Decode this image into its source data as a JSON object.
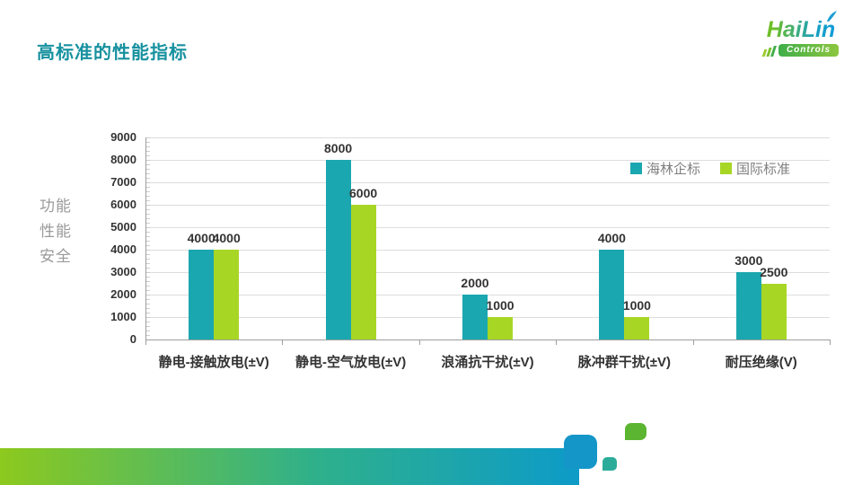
{
  "header": {
    "title": "高标准的性能指标",
    "logo": {
      "name": "HaiLin",
      "tagline": "Controls"
    }
  },
  "chart_data": {
    "type": "bar",
    "title": "",
    "categories": [
      "静电-接触放电(±V)",
      "静电-空气放电(±V)",
      "浪涌抗干扰(±V)",
      "脉冲群干扰(±V)",
      "耐压绝缘(V)"
    ],
    "series": [
      {
        "name": "海林企标",
        "color": "#1BA7AF",
        "values": [
          4000,
          8000,
          2000,
          4000,
          3000
        ]
      },
      {
        "name": "国际标准",
        "color": "#A8D625",
        "values": [
          4000,
          6000,
          1000,
          1000,
          2500
        ]
      }
    ],
    "ylim": [
      0,
      9000
    ],
    "ytick_step": 1000,
    "grid": true,
    "data_labels": true,
    "legend_position": "top-right",
    "side_axis_labels": [
      "功能",
      "性能",
      "安全"
    ]
  },
  "colors": {
    "title": "#17919F",
    "bar_teal": "#1BA7AF",
    "bar_green": "#A8D625",
    "footer_gradient_left": "#8DC91E",
    "footer_gradient_right": "#0D9BC8",
    "deco_blue": "#1496C8",
    "deco_green": "#5CB531",
    "deco_teal": "#2BAC9B"
  }
}
